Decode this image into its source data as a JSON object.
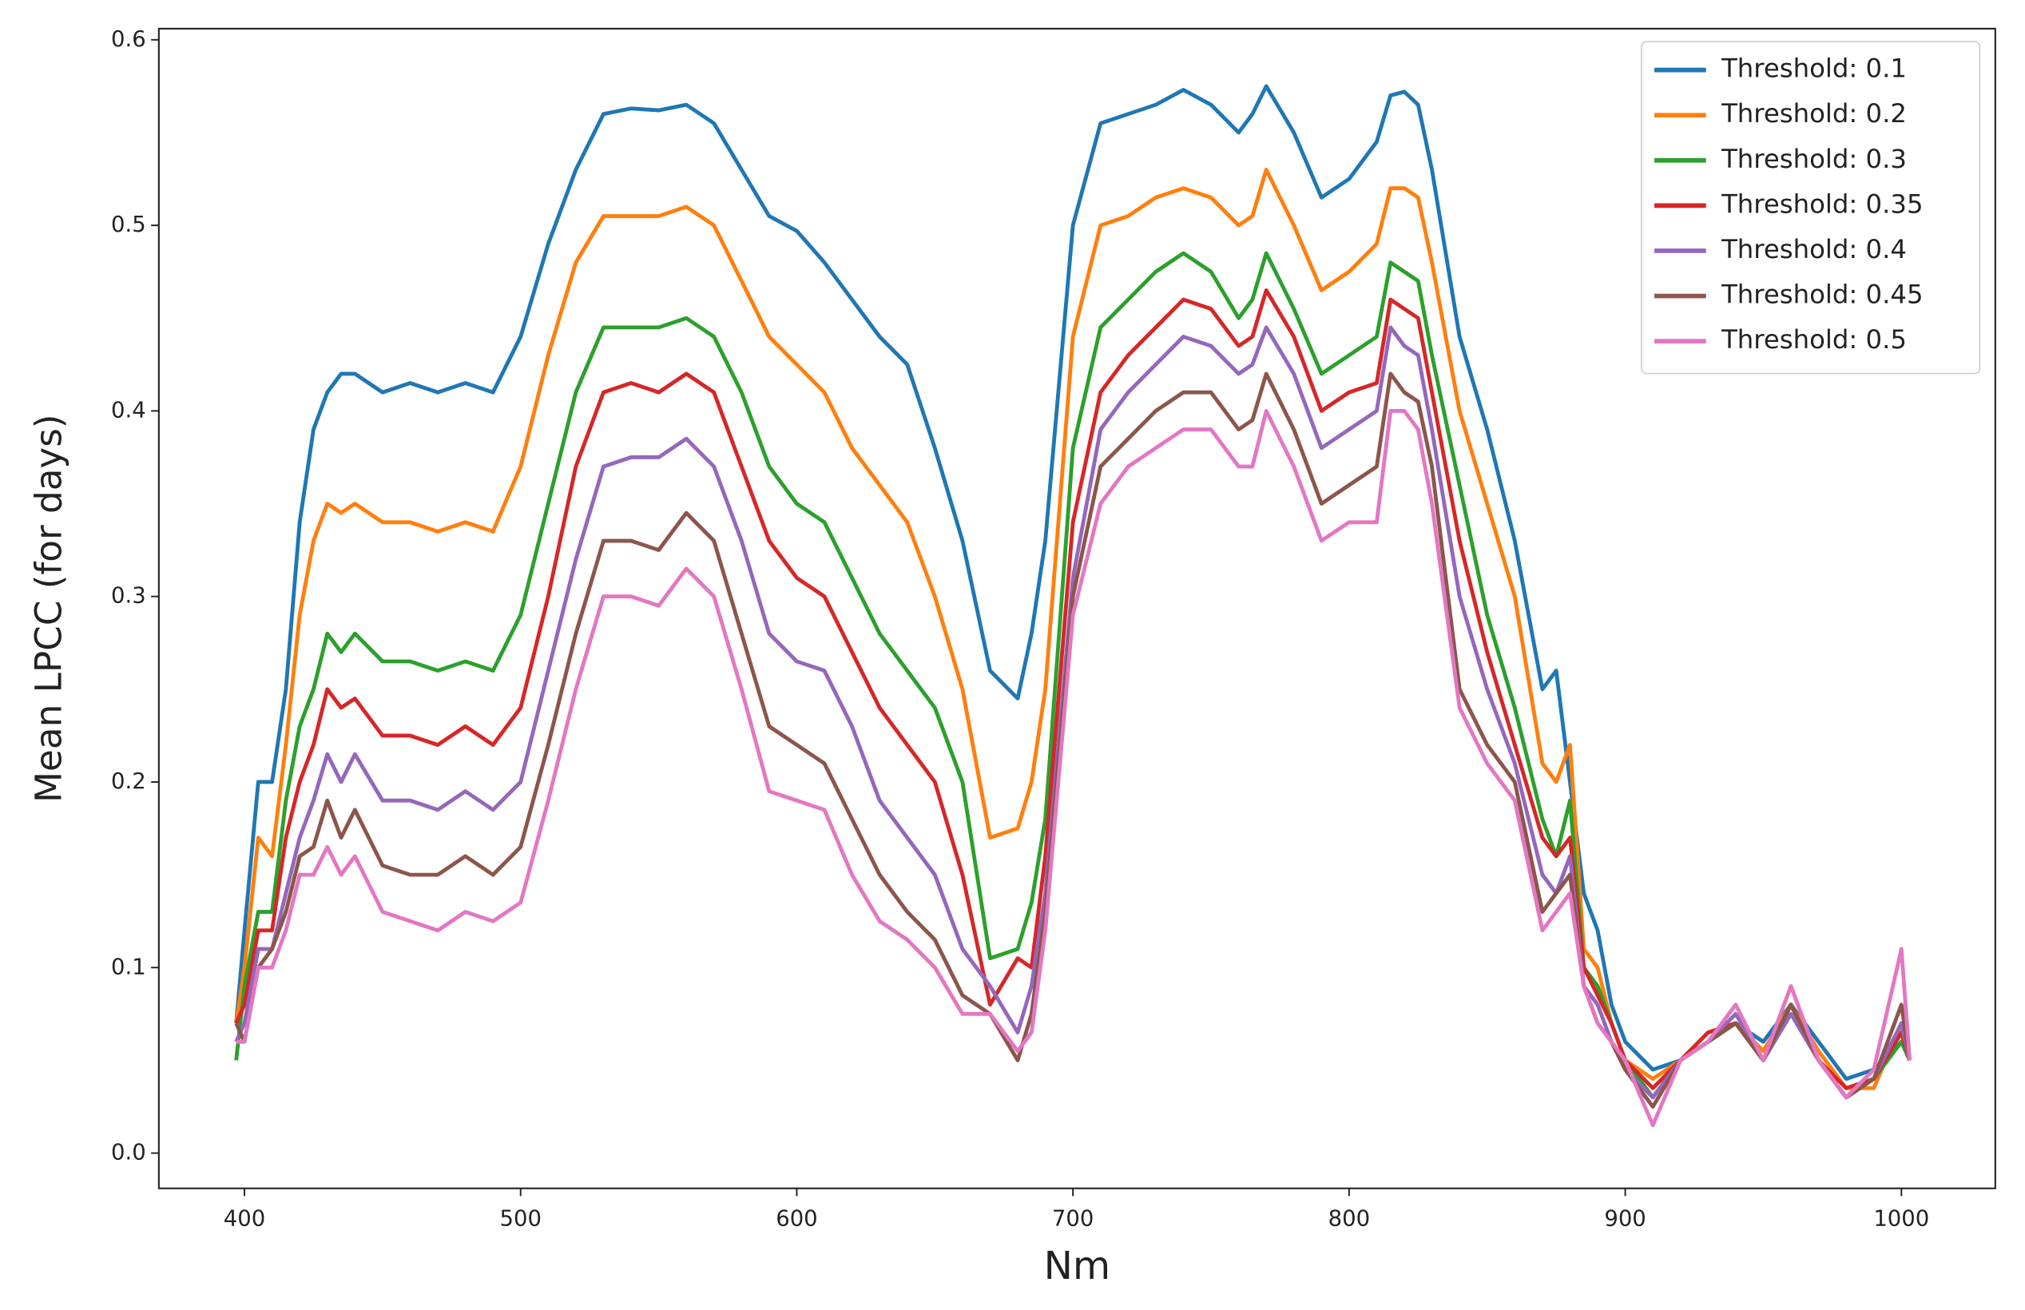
{
  "chart_data": {
    "type": "line",
    "xlabel": "Nm",
    "ylabel": "Mean LPCC (for days)",
    "xlim": [
      369,
      1034
    ],
    "ylim": [
      -0.019,
      0.606
    ],
    "xticks": [
      400,
      500,
      600,
      700,
      800,
      900,
      1000
    ],
    "yticks": [
      {
        "value": 0,
        "label": "0.0"
      },
      0.1,
      0.2,
      0.3,
      0.4,
      0.5,
      0.6
    ],
    "legend": "upper right",
    "x": [
      397,
      400,
      405,
      410,
      415,
      420,
      425,
      430,
      435,
      440,
      450,
      460,
      470,
      480,
      490,
      500,
      510,
      520,
      530,
      540,
      550,
      560,
      570,
      580,
      590,
      600,
      610,
      620,
      630,
      640,
      650,
      660,
      670,
      680,
      685,
      690,
      700,
      710,
      720,
      730,
      740,
      750,
      760,
      765,
      770,
      780,
      790,
      800,
      810,
      815,
      820,
      825,
      830,
      840,
      850,
      860,
      870,
      875,
      880,
      885,
      890,
      895,
      900,
      910,
      920,
      930,
      940,
      950,
      960,
      970,
      980,
      990,
      1000,
      1003
    ],
    "series": [
      {
        "name": "Threshold: 0.1",
        "color": "#1f77b4",
        "values": [
          0.07,
          0.12,
          0.2,
          0.2,
          0.25,
          0.34,
          0.39,
          0.41,
          0.42,
          0.42,
          0.41,
          0.415,
          0.41,
          0.415,
          0.41,
          0.44,
          0.49,
          0.53,
          0.56,
          0.563,
          0.562,
          0.565,
          0.555,
          0.53,
          0.505,
          0.497,
          0.48,
          0.46,
          0.44,
          0.425,
          0.38,
          0.33,
          0.26,
          0.245,
          0.28,
          0.33,
          0.5,
          0.555,
          0.56,
          0.565,
          0.573,
          0.565,
          0.55,
          0.56,
          0.575,
          0.55,
          0.515,
          0.525,
          0.545,
          0.57,
          0.572,
          0.565,
          0.53,
          0.44,
          0.39,
          0.33,
          0.25,
          0.26,
          0.2,
          0.14,
          0.12,
          0.08,
          0.06,
          0.045,
          0.05,
          0.06,
          0.07,
          0.06,
          0.08,
          0.06,
          0.04,
          0.045,
          0.06,
          0.05
        ]
      },
      {
        "name": "Threshold: 0.2",
        "color": "#ff7f0e",
        "values": [
          0.07,
          0.1,
          0.17,
          0.16,
          0.22,
          0.29,
          0.33,
          0.35,
          0.345,
          0.35,
          0.34,
          0.34,
          0.335,
          0.34,
          0.335,
          0.37,
          0.43,
          0.48,
          0.505,
          0.505,
          0.505,
          0.51,
          0.5,
          0.47,
          0.44,
          0.425,
          0.41,
          0.38,
          0.36,
          0.34,
          0.3,
          0.25,
          0.17,
          0.175,
          0.2,
          0.25,
          0.44,
          0.5,
          0.505,
          0.515,
          0.52,
          0.515,
          0.5,
          0.505,
          0.53,
          0.5,
          0.465,
          0.475,
          0.49,
          0.52,
          0.52,
          0.515,
          0.48,
          0.4,
          0.35,
          0.3,
          0.21,
          0.2,
          0.22,
          0.11,
          0.1,
          0.07,
          0.05,
          0.04,
          0.05,
          0.065,
          0.07,
          0.055,
          0.08,
          0.055,
          0.035,
          0.035,
          0.07,
          0.05
        ]
      },
      {
        "name": "Threshold: 0.3",
        "color": "#2ca02c",
        "values": [
          0.05,
          0.09,
          0.13,
          0.13,
          0.19,
          0.23,
          0.25,
          0.28,
          0.27,
          0.28,
          0.265,
          0.265,
          0.26,
          0.265,
          0.26,
          0.29,
          0.35,
          0.41,
          0.445,
          0.445,
          0.445,
          0.45,
          0.44,
          0.41,
          0.37,
          0.35,
          0.34,
          0.31,
          0.28,
          0.26,
          0.24,
          0.2,
          0.105,
          0.11,
          0.135,
          0.18,
          0.38,
          0.445,
          0.46,
          0.475,
          0.485,
          0.475,
          0.45,
          0.46,
          0.485,
          0.455,
          0.42,
          0.43,
          0.44,
          0.48,
          0.475,
          0.47,
          0.43,
          0.36,
          0.29,
          0.24,
          0.18,
          0.16,
          0.19,
          0.1,
          0.09,
          0.07,
          0.05,
          0.03,
          0.05,
          0.06,
          0.07,
          0.05,
          0.08,
          0.05,
          0.03,
          0.04,
          0.06,
          0.05
        ]
      },
      {
        "name": "Threshold: 0.35",
        "color": "#d62728",
        "values": [
          0.07,
          0.08,
          0.12,
          0.12,
          0.17,
          0.2,
          0.22,
          0.25,
          0.24,
          0.245,
          0.225,
          0.225,
          0.22,
          0.23,
          0.22,
          0.24,
          0.3,
          0.37,
          0.41,
          0.415,
          0.41,
          0.42,
          0.41,
          0.37,
          0.33,
          0.31,
          0.3,
          0.27,
          0.24,
          0.22,
          0.2,
          0.15,
          0.08,
          0.105,
          0.1,
          0.16,
          0.34,
          0.41,
          0.43,
          0.445,
          0.46,
          0.455,
          0.435,
          0.44,
          0.465,
          0.44,
          0.4,
          0.41,
          0.415,
          0.46,
          0.455,
          0.45,
          0.41,
          0.33,
          0.27,
          0.22,
          0.17,
          0.16,
          0.17,
          0.1,
          0.085,
          0.07,
          0.05,
          0.035,
          0.05,
          0.065,
          0.07,
          0.05,
          0.08,
          0.05,
          0.035,
          0.04,
          0.065,
          0.05
        ]
      },
      {
        "name": "Threshold: 0.4",
        "color": "#9467bd",
        "values": [
          0.06,
          0.07,
          0.11,
          0.11,
          0.14,
          0.17,
          0.19,
          0.215,
          0.2,
          0.215,
          0.19,
          0.19,
          0.185,
          0.195,
          0.185,
          0.2,
          0.26,
          0.32,
          0.37,
          0.375,
          0.375,
          0.385,
          0.37,
          0.33,
          0.28,
          0.265,
          0.26,
          0.23,
          0.19,
          0.17,
          0.15,
          0.11,
          0.09,
          0.065,
          0.09,
          0.14,
          0.31,
          0.39,
          0.41,
          0.425,
          0.44,
          0.435,
          0.42,
          0.425,
          0.445,
          0.42,
          0.38,
          0.39,
          0.4,
          0.445,
          0.435,
          0.43,
          0.39,
          0.3,
          0.25,
          0.21,
          0.15,
          0.14,
          0.16,
          0.09,
          0.08,
          0.06,
          0.045,
          0.03,
          0.05,
          0.06,
          0.075,
          0.05,
          0.075,
          0.05,
          0.03,
          0.04,
          0.07,
          0.05
        ]
      },
      {
        "name": "Threshold: 0.45",
        "color": "#8c564b",
        "values": [
          0.07,
          0.06,
          0.1,
          0.11,
          0.13,
          0.16,
          0.165,
          0.19,
          0.17,
          0.185,
          0.155,
          0.15,
          0.15,
          0.16,
          0.15,
          0.165,
          0.22,
          0.28,
          0.33,
          0.33,
          0.325,
          0.345,
          0.33,
          0.28,
          0.23,
          0.22,
          0.21,
          0.18,
          0.15,
          0.13,
          0.115,
          0.085,
          0.075,
          0.05,
          0.075,
          0.13,
          0.3,
          0.37,
          0.385,
          0.4,
          0.41,
          0.41,
          0.39,
          0.395,
          0.42,
          0.39,
          0.35,
          0.36,
          0.37,
          0.42,
          0.41,
          0.405,
          0.37,
          0.25,
          0.22,
          0.2,
          0.13,
          0.14,
          0.15,
          0.09,
          0.07,
          0.06,
          0.045,
          0.025,
          0.05,
          0.06,
          0.07,
          0.05,
          0.08,
          0.05,
          0.03,
          0.04,
          0.08,
          0.05
        ]
      },
      {
        "name": "Threshold: 0.5",
        "color": "#e377c2",
        "values": [
          0.06,
          0.06,
          0.1,
          0.1,
          0.12,
          0.15,
          0.15,
          0.165,
          0.15,
          0.16,
          0.13,
          0.125,
          0.12,
          0.13,
          0.125,
          0.135,
          0.19,
          0.25,
          0.3,
          0.3,
          0.295,
          0.315,
          0.3,
          0.25,
          0.195,
          0.19,
          0.185,
          0.15,
          0.125,
          0.115,
          0.1,
          0.075,
          0.075,
          0.055,
          0.065,
          0.12,
          0.29,
          0.35,
          0.37,
          0.38,
          0.39,
          0.39,
          0.37,
          0.37,
          0.4,
          0.37,
          0.33,
          0.34,
          0.34,
          0.4,
          0.4,
          0.39,
          0.35,
          0.24,
          0.21,
          0.19,
          0.12,
          0.13,
          0.14,
          0.09,
          0.07,
          0.06,
          0.05,
          0.015,
          0.05,
          0.06,
          0.08,
          0.05,
          0.09,
          0.05,
          0.03,
          0.045,
          0.11,
          0.05
        ]
      }
    ]
  }
}
